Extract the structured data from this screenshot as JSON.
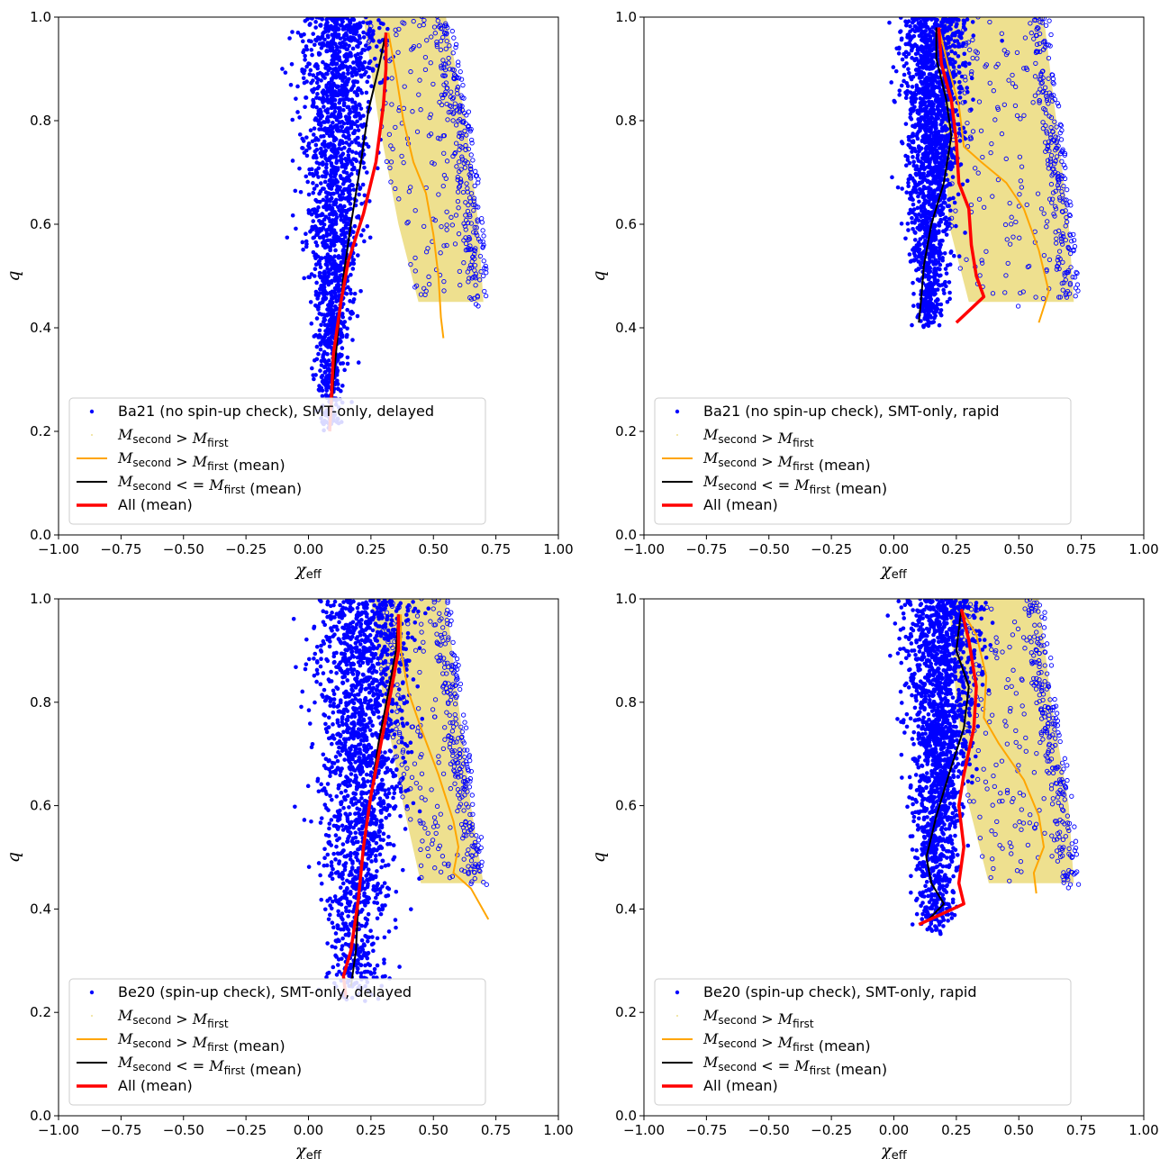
{
  "chart_data": [
    {
      "type": "scatter",
      "xlabel": "χ",
      "xlabel_sub": "eff",
      "ylabel": "q",
      "xlim": [
        -1.0,
        1.0
      ],
      "ylim": [
        0.0,
        1.0
      ],
      "x_ticks": [
        -1.0,
        -0.75,
        -0.5,
        -0.25,
        0.0,
        0.25,
        0.5,
        0.75,
        1.0
      ],
      "y_ticks": [
        0.0,
        0.2,
        0.4,
        0.6,
        0.8,
        1.0
      ],
      "x_tick_labels": [
        "−1.00",
        "−0.75",
        "−0.50",
        "−0.25",
        "0.00",
        "0.25",
        "0.50",
        "0.75",
        "1.00"
      ],
      "y_tick_labels": [
        "0.0",
        "0.2",
        "0.4",
        "0.6",
        "0.8",
        "1.0"
      ],
      "legend_placement": "lower-left",
      "legend": [
        {
          "text": "Ba21 (no spin-up check),  SMT-only,  delayed",
          "kind": "points"
        },
        {
          "text": "M_second > M_first",
          "kind": "band"
        },
        {
          "text": "M_second > M_first (mean)",
          "kind": "line",
          "color": "#ffa500"
        },
        {
          "text": "M_second < = M_first (mean)",
          "kind": "line",
          "color": "#000000"
        },
        {
          "text": "All (mean)",
          "kind": "line",
          "color": "#ff0000"
        }
      ],
      "blue_cloud": {
        "center": 0.1,
        "q_low": 0.2,
        "q_high": 1.0,
        "halfwidth_low": 0.04,
        "halfwidth_high": 0.15
      },
      "yellow_band": [
        {
          "q": 1.0,
          "x_low": 0.22,
          "x_high": 0.55
        },
        {
          "q": 0.8,
          "x_low": 0.28,
          "x_high": 0.63
        },
        {
          "q": 0.6,
          "x_low": 0.36,
          "x_high": 0.68
        },
        {
          "q": 0.45,
          "x_low": 0.44,
          "x_high": 0.7
        }
      ],
      "series": [
        {
          "name": "M_second > M_first (mean)",
          "color": "#ffa500",
          "width": 2,
          "x": [
            0.32,
            0.35,
            0.38,
            0.42,
            0.47,
            0.5,
            0.52,
            0.53,
            0.54
          ],
          "y": [
            0.97,
            0.89,
            0.8,
            0.72,
            0.66,
            0.58,
            0.5,
            0.42,
            0.38
          ]
        },
        {
          "name": "M_second < = M_first (mean)",
          "color": "#000000",
          "width": 2,
          "x": [
            0.31,
            0.28,
            0.24,
            0.21,
            0.17,
            0.14,
            0.12,
            0.1,
            0.09
          ],
          "y": [
            0.97,
            0.9,
            0.82,
            0.72,
            0.6,
            0.5,
            0.4,
            0.3,
            0.22
          ]
        },
        {
          "name": "All (mean)",
          "color": "#ff0000",
          "width": 3.5,
          "x": [
            0.31,
            0.31,
            0.3,
            0.27,
            0.22,
            0.16,
            0.13,
            0.1,
            0.09,
            0.085
          ],
          "y": [
            0.97,
            0.9,
            0.83,
            0.72,
            0.62,
            0.53,
            0.45,
            0.35,
            0.25,
            0.2
          ]
        }
      ]
    },
    {
      "type": "scatter",
      "xlabel": "χ",
      "xlabel_sub": "eff",
      "ylabel": "q",
      "xlim": [
        -1.0,
        1.0
      ],
      "ylim": [
        0.0,
        1.0
      ],
      "x_ticks": [
        -1.0,
        -0.75,
        -0.5,
        -0.25,
        0.0,
        0.25,
        0.5,
        0.75,
        1.0
      ],
      "y_ticks": [
        0.0,
        0.2,
        0.4,
        0.6,
        0.8,
        1.0
      ],
      "x_tick_labels": [
        "−1.00",
        "−0.75",
        "−0.50",
        "−0.25",
        "0.00",
        "0.25",
        "0.50",
        "0.75",
        "1.00"
      ],
      "y_tick_labels": [
        "0.0",
        "0.2",
        "0.4",
        "0.6",
        "0.8",
        "1.0"
      ],
      "legend_placement": "lower-left",
      "legend": [
        {
          "text": "Ba21 (no spin-up check),  SMT-only,  rapid",
          "kind": "points"
        },
        {
          "text": "M_second > M_first",
          "kind": "band"
        },
        {
          "text": "M_second > M_first (mean)",
          "kind": "line",
          "color": "#ffa500"
        },
        {
          "text": "M_second < = M_first (mean)",
          "kind": "line",
          "color": "#000000"
        },
        {
          "text": "All (mean)",
          "kind": "line",
          "color": "#ff0000"
        }
      ],
      "blue_cloud": {
        "center": 0.14,
        "q_low": 0.4,
        "q_high": 1.0,
        "halfwidth_low": 0.05,
        "halfwidth_high": 0.12
      },
      "yellow_band": [
        {
          "q": 1.0,
          "x_low": 0.18,
          "x_high": 0.6
        },
        {
          "q": 0.8,
          "x_low": 0.2,
          "x_high": 0.65
        },
        {
          "q": 0.6,
          "x_low": 0.22,
          "x_high": 0.7
        },
        {
          "q": 0.45,
          "x_low": 0.3,
          "x_high": 0.72
        }
      ],
      "series": [
        {
          "name": "M_second > M_first (mean)",
          "color": "#ffa500",
          "width": 2,
          "x": [
            0.18,
            0.22,
            0.26,
            0.28,
            0.35,
            0.45,
            0.52,
            0.58,
            0.62,
            0.58
          ],
          "y": [
            0.98,
            0.9,
            0.83,
            0.75,
            0.72,
            0.68,
            0.63,
            0.55,
            0.47,
            0.41
          ]
        },
        {
          "name": "M_second < = M_first (mean)",
          "color": "#000000",
          "width": 2,
          "x": [
            0.17,
            0.17,
            0.21,
            0.23,
            0.2,
            0.15,
            0.12,
            0.11,
            0.1
          ],
          "y": [
            0.98,
            0.92,
            0.84,
            0.77,
            0.68,
            0.6,
            0.52,
            0.46,
            0.41
          ]
        },
        {
          "name": "All (mean)",
          "color": "#ff0000",
          "width": 3.5,
          "x": [
            0.18,
            0.19,
            0.23,
            0.25,
            0.26,
            0.3,
            0.31,
            0.33,
            0.36,
            0.25
          ],
          "y": [
            0.98,
            0.91,
            0.84,
            0.76,
            0.68,
            0.63,
            0.56,
            0.5,
            0.46,
            0.41
          ]
        }
      ]
    },
    {
      "type": "scatter",
      "xlabel": "χ",
      "xlabel_sub": "eff",
      "ylabel": "q",
      "xlim": [
        -1.0,
        1.0
      ],
      "ylim": [
        0.0,
        1.0
      ],
      "x_ticks": [
        -1.0,
        -0.75,
        -0.5,
        -0.25,
        0.0,
        0.25,
        0.5,
        0.75,
        1.0
      ],
      "y_ticks": [
        0.0,
        0.2,
        0.4,
        0.6,
        0.8,
        1.0
      ],
      "x_tick_labels": [
        "−1.00",
        "−0.75",
        "−0.50",
        "−0.25",
        "0.00",
        "0.25",
        "0.50",
        "0.75",
        "1.00"
      ],
      "y_tick_labels": [
        "0.0",
        "0.2",
        "0.4",
        "0.6",
        "0.8",
        "1.0"
      ],
      "legend_placement": "lower-left",
      "legend": [
        {
          "text": "Be20 (spin-up check),  SMT-only,  delayed",
          "kind": "points"
        },
        {
          "text": "M_second > M_first",
          "kind": "band"
        },
        {
          "text": "M_second > M_first (mean)",
          "kind": "line",
          "color": "#ffa500"
        },
        {
          "text": "M_second < = M_first (mean)",
          "kind": "line",
          "color": "#000000"
        },
        {
          "text": "All (mean)",
          "kind": "line",
          "color": "#ff0000"
        }
      ],
      "blue_cloud": {
        "center": 0.2,
        "q_low": 0.22,
        "q_high": 1.0,
        "halfwidth_low": 0.1,
        "halfwidth_high": 0.18
      },
      "yellow_band": [
        {
          "q": 1.0,
          "x_low": 0.25,
          "x_high": 0.55
        },
        {
          "q": 0.8,
          "x_low": 0.3,
          "x_high": 0.6
        },
        {
          "q": 0.6,
          "x_low": 0.38,
          "x_high": 0.65
        },
        {
          "q": 0.45,
          "x_low": 0.45,
          "x_high": 0.7
        }
      ],
      "series": [
        {
          "name": "M_second > M_first (mean)",
          "color": "#ffa500",
          "width": 2,
          "x": [
            0.37,
            0.37,
            0.4,
            0.45,
            0.52,
            0.58,
            0.6,
            0.58,
            0.65,
            0.72
          ],
          "y": [
            0.97,
            0.9,
            0.82,
            0.75,
            0.66,
            0.57,
            0.52,
            0.47,
            0.44,
            0.38
          ]
        },
        {
          "name": "M_second < = M_first (mean)",
          "color": "#000000",
          "width": 2,
          "x": [
            0.36,
            0.35,
            0.32,
            0.28,
            0.25,
            0.22,
            0.2,
            0.19,
            0.17
          ],
          "y": [
            0.97,
            0.9,
            0.82,
            0.72,
            0.62,
            0.52,
            0.42,
            0.32,
            0.25
          ]
        },
        {
          "name": "All (mean)",
          "color": "#ff0000",
          "width": 3.5,
          "x": [
            0.36,
            0.36,
            0.33,
            0.29,
            0.25,
            0.22,
            0.2,
            0.17,
            0.14,
            0.15
          ],
          "y": [
            0.97,
            0.9,
            0.82,
            0.72,
            0.62,
            0.52,
            0.42,
            0.32,
            0.27,
            0.23
          ]
        }
      ]
    },
    {
      "type": "scatter",
      "xlabel": "χ",
      "xlabel_sub": "eff",
      "ylabel": "q",
      "xlim": [
        -1.0,
        1.0
      ],
      "ylim": [
        0.0,
        1.0
      ],
      "x_ticks": [
        -1.0,
        -0.75,
        -0.5,
        -0.25,
        0.0,
        0.25,
        0.5,
        0.75,
        1.0
      ],
      "y_ticks": [
        0.0,
        0.2,
        0.4,
        0.6,
        0.8,
        1.0
      ],
      "x_tick_labels": [
        "−1.00",
        "−0.75",
        "−0.50",
        "−0.25",
        "0.00",
        "0.25",
        "0.50",
        "0.75",
        "1.00"
      ],
      "y_tick_labels": [
        "0.0",
        "0.2",
        "0.4",
        "0.6",
        "0.8",
        "1.0"
      ],
      "legend_placement": "lower-left",
      "legend": [
        {
          "text": "Be20 (spin-up check),  SMT-only,  rapid",
          "kind": "points"
        },
        {
          "text": "M_second > M_first",
          "kind": "band"
        },
        {
          "text": "M_second > M_first (mean)",
          "kind": "line",
          "color": "#ffa500"
        },
        {
          "text": "M_second < = M_first (mean)",
          "kind": "line",
          "color": "#000000"
        },
        {
          "text": "All (mean)",
          "kind": "line",
          "color": "#ff0000"
        }
      ],
      "blue_cloud": {
        "center": 0.17,
        "q_low": 0.35,
        "q_high": 1.0,
        "halfwidth_low": 0.06,
        "halfwidth_high": 0.14
      },
      "yellow_band": [
        {
          "q": 1.0,
          "x_low": 0.22,
          "x_high": 0.58
        },
        {
          "q": 0.8,
          "x_low": 0.25,
          "x_high": 0.63
        },
        {
          "q": 0.6,
          "x_low": 0.3,
          "x_high": 0.7
        },
        {
          "q": 0.45,
          "x_low": 0.38,
          "x_high": 0.72
        }
      ],
      "series": [
        {
          "name": "M_second > M_first (mean)",
          "color": "#ffa500",
          "width": 2,
          "x": [
            0.27,
            0.33,
            0.37,
            0.36,
            0.42,
            0.52,
            0.58,
            0.6,
            0.56,
            0.57
          ],
          "y": [
            0.98,
            0.93,
            0.85,
            0.77,
            0.72,
            0.65,
            0.58,
            0.52,
            0.47,
            0.43
          ]
        },
        {
          "name": "M_second < = M_first (mean)",
          "color": "#000000",
          "width": 2,
          "x": [
            0.27,
            0.25,
            0.3,
            0.28,
            0.22,
            0.17,
            0.13,
            0.15,
            0.2,
            0.14
          ],
          "y": [
            0.98,
            0.9,
            0.83,
            0.75,
            0.66,
            0.58,
            0.5,
            0.45,
            0.41,
            0.38
          ]
        },
        {
          "name": "All (mean)",
          "color": "#ff0000",
          "width": 3.5,
          "x": [
            0.27,
            0.3,
            0.33,
            0.32,
            0.28,
            0.26,
            0.28,
            0.26,
            0.28,
            0.1
          ],
          "y": [
            0.98,
            0.92,
            0.83,
            0.75,
            0.66,
            0.6,
            0.52,
            0.45,
            0.41,
            0.37
          ]
        }
      ]
    }
  ]
}
